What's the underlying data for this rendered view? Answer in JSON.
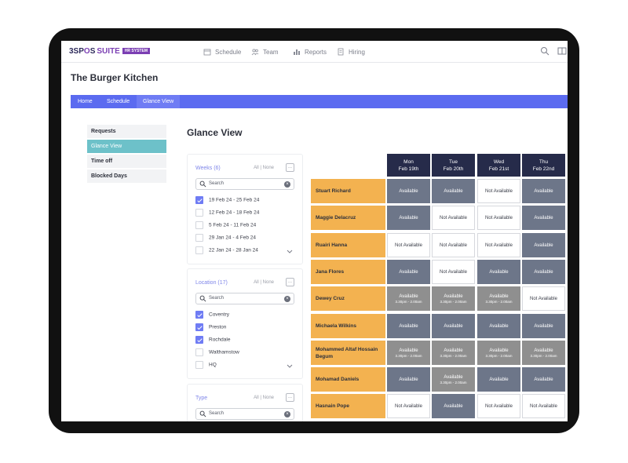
{
  "brand": {
    "logo_main": "3SP",
    "logo_o": "O",
    "logo_end": "S",
    "suite": "SUITE",
    "badge": "HR SYSTEM"
  },
  "nav": {
    "schedule": "Schedule",
    "team": "Team",
    "reports": "Reports",
    "hiring": "Hiring"
  },
  "company": "The Burger Kitchen",
  "breadcrumb": [
    "Home",
    "Schedule",
    "Glance View"
  ],
  "side_menu": [
    "Requests",
    "Glance View",
    "Time off",
    "Blocked Days"
  ],
  "title": "Glance View",
  "filters": {
    "weeks": {
      "label": "Weeks (6)",
      "all": "All",
      "none": "None",
      "more": "...",
      "search": "Search",
      "options": [
        {
          "label": "19 Feb 24 - 25 Feb 24",
          "checked": true
        },
        {
          "label": "12 Feb 24 - 18 Feb 24",
          "checked": false
        },
        {
          "label": "5 Feb 24 - 11 Feb 24",
          "checked": false
        },
        {
          "label": "29 Jan 24 - 4 Feb 24",
          "checked": false
        },
        {
          "label": "22 Jan 24 - 28 Jan 24",
          "checked": false
        }
      ]
    },
    "location": {
      "label": "Location (17)",
      "all": "All",
      "none": "None",
      "more": "...",
      "search": "Search",
      "options": [
        {
          "label": "Coventry",
          "checked": true
        },
        {
          "label": "Preston",
          "checked": true
        },
        {
          "label": "Rochdale",
          "checked": true
        },
        {
          "label": "Walthamstow",
          "checked": false
        },
        {
          "label": "HQ",
          "checked": false
        }
      ]
    },
    "type": {
      "label": "Type",
      "all": "All",
      "none": "None",
      "more": "...",
      "search": "Search"
    }
  },
  "days": [
    {
      "name": "Mon",
      "date": "Feb 19th"
    },
    {
      "name": "Tue",
      "date": "Feb 20th"
    },
    {
      "name": "Wed",
      "date": "Feb 21st"
    },
    {
      "name": "Thu",
      "date": "Feb 22nd"
    }
  ],
  "labels": {
    "available": "Available",
    "not_available": "Not Available",
    "shift": "3.30pm - 2.00am"
  },
  "rows": [
    {
      "name": "Stuart Richard",
      "cells": [
        "A",
        "A",
        "N",
        "A"
      ]
    },
    {
      "name": "Maggie Delacruz",
      "cells": [
        "A",
        "N",
        "N",
        "A"
      ]
    },
    {
      "name": "Ruairi Hanna",
      "cells": [
        "N",
        "N",
        "N",
        "A"
      ]
    },
    {
      "name": "Jana Flores",
      "cells": [
        "A",
        "N",
        "A",
        "A"
      ]
    },
    {
      "name": "Dewey Cruz",
      "cells": [
        "S",
        "S",
        "S",
        "N"
      ]
    },
    {
      "name": "Michaela Wilkins",
      "cells": [
        "A",
        "A",
        "A",
        "A"
      ]
    },
    {
      "name": "Mohammed Altaf Hossain Begum",
      "cells": [
        "S",
        "S",
        "S",
        "S"
      ]
    },
    {
      "name": "Mohamad Daniels",
      "cells": [
        "A",
        "S",
        "A",
        "A"
      ]
    },
    {
      "name": "Hasnain Pope",
      "cells": [
        "N",
        "A",
        "N",
        "N"
      ]
    }
  ]
}
